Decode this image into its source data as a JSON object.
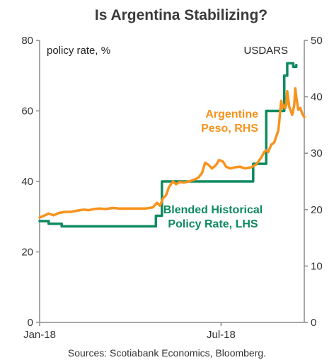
{
  "chart_data": {
    "type": "line",
    "title": "Is Argentina Stabilizing?",
    "y_left_label": "policy rate, %",
    "y_right_label": "USDARS",
    "y_left_range": [
      0,
      80
    ],
    "y_left_ticks": [
      "0",
      "20",
      "40",
      "60",
      "80"
    ],
    "y_right_range": [
      0,
      50
    ],
    "y_right_ticks": [
      "0",
      "10",
      "20",
      "30",
      "40",
      "50"
    ],
    "x_range": [
      "2018-01-01",
      "2018-09-22"
    ],
    "x_ticks": [
      {
        "label": "Jan-18",
        "date": "2018-01-01"
      },
      {
        "label": "Jul-18",
        "date": "2018-07-01"
      }
    ],
    "grid": false,
    "series": [
      {
        "name": "Blended Historical Policy Rate, LHS",
        "axis": "left",
        "color": "#0f8a5f",
        "step": true,
        "points": [
          [
            "2018-01-01",
            28.75
          ],
          [
            "2018-01-10",
            28.0
          ],
          [
            "2018-01-23",
            27.25
          ],
          [
            "2018-04-27",
            30.25
          ],
          [
            "2018-05-03",
            40.0
          ],
          [
            "2018-07-31",
            40.0
          ],
          [
            "2018-08-02",
            45.0
          ],
          [
            "2018-08-13",
            45.0
          ],
          [
            "2018-08-15",
            60.0
          ],
          [
            "2018-08-30",
            60.0
          ],
          [
            "2018-09-02",
            70.0
          ],
          [
            "2018-09-05",
            73.5
          ],
          [
            "2018-09-09",
            73.5
          ],
          [
            "2018-09-11",
            72.5
          ],
          [
            "2018-09-14",
            73.0
          ]
        ]
      },
      {
        "name": "Argentine Peso, RHS",
        "axis": "right",
        "color": "#f7931e",
        "step": false,
        "points": [
          [
            "2018-01-01",
            18.6
          ],
          [
            "2018-01-05",
            18.9
          ],
          [
            "2018-01-10",
            19.3
          ],
          [
            "2018-01-15",
            19.0
          ],
          [
            "2018-01-20",
            19.4
          ],
          [
            "2018-01-26",
            19.6
          ],
          [
            "2018-02-01",
            19.6
          ],
          [
            "2018-02-07",
            19.8
          ],
          [
            "2018-02-14",
            20.0
          ],
          [
            "2018-02-19",
            19.9
          ],
          [
            "2018-02-24",
            20.1
          ],
          [
            "2018-03-02",
            20.2
          ],
          [
            "2018-03-08",
            20.1
          ],
          [
            "2018-03-15",
            20.3
          ],
          [
            "2018-03-21",
            20.2
          ],
          [
            "2018-03-28",
            20.2
          ],
          [
            "2018-04-03",
            20.2
          ],
          [
            "2018-04-10",
            20.2
          ],
          [
            "2018-04-17",
            20.2
          ],
          [
            "2018-04-24",
            20.4
          ],
          [
            "2018-04-28",
            21.2
          ],
          [
            "2018-05-01",
            20.7
          ],
          [
            "2018-05-04",
            22.0
          ],
          [
            "2018-05-07",
            22.5
          ],
          [
            "2018-05-10",
            24.0
          ],
          [
            "2018-05-14",
            25.0
          ],
          [
            "2018-05-17",
            24.5
          ],
          [
            "2018-05-21",
            24.9
          ],
          [
            "2018-05-25",
            24.8
          ],
          [
            "2018-05-30",
            25.0
          ],
          [
            "2018-06-04",
            25.3
          ],
          [
            "2018-06-08",
            25.6
          ],
          [
            "2018-06-12",
            26.5
          ],
          [
            "2018-06-15",
            28.3
          ],
          [
            "2018-06-18",
            28.0
          ],
          [
            "2018-06-22",
            27.3
          ],
          [
            "2018-06-26",
            27.9
          ],
          [
            "2018-06-29",
            28.8
          ],
          [
            "2018-07-03",
            28.5
          ],
          [
            "2018-07-06",
            27.6
          ],
          [
            "2018-07-10",
            27.3
          ],
          [
            "2018-07-15",
            27.5
          ],
          [
            "2018-07-20",
            27.6
          ],
          [
            "2018-07-25",
            27.3
          ],
          [
            "2018-07-31",
            27.5
          ],
          [
            "2018-08-05",
            28.0
          ],
          [
            "2018-08-10",
            29.2
          ],
          [
            "2018-08-13",
            30.2
          ],
          [
            "2018-08-15",
            30.5
          ],
          [
            "2018-08-17",
            30.2
          ],
          [
            "2018-08-20",
            31.5
          ],
          [
            "2018-08-23",
            31.9
          ],
          [
            "2018-08-27",
            34.0
          ],
          [
            "2018-08-28",
            35.5
          ],
          [
            "2018-08-29",
            37.5
          ],
          [
            "2018-08-30",
            39.3
          ],
          [
            "2018-08-31",
            38.0
          ],
          [
            "2018-09-01",
            38.6
          ],
          [
            "2018-09-03",
            38.0
          ],
          [
            "2018-09-04",
            38.5
          ],
          [
            "2018-09-05",
            41.0
          ],
          [
            "2018-09-06",
            39.7
          ],
          [
            "2018-09-07",
            38.2
          ],
          [
            "2018-09-10",
            36.8
          ],
          [
            "2018-09-12",
            38.5
          ],
          [
            "2018-09-13",
            41.5
          ],
          [
            "2018-09-14",
            40.0
          ],
          [
            "2018-09-16",
            37.7
          ],
          [
            "2018-09-18",
            38.0
          ],
          [
            "2018-09-20",
            37.0
          ],
          [
            "2018-09-22",
            36.4
          ]
        ]
      }
    ],
    "annotations": [
      {
        "lines": [
          "Argentine",
          "Peso, RHS"
        ],
        "color": "#f7931e"
      },
      {
        "lines": [
          "Blended Historical",
          "Policy Rate, LHS"
        ],
        "color": "#0f8a5f"
      }
    ],
    "source": "Sources: Scotiabank Economics, Bloomberg."
  }
}
